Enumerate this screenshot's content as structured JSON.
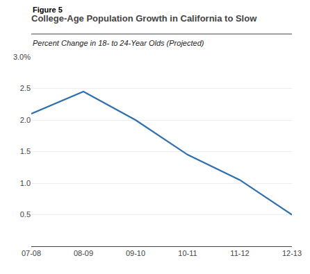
{
  "chart_data": {
    "type": "line",
    "title": "College-Age Population Growth in California to Slow",
    "subtitle": "Percent Change in 18- to 24-Year Olds (Projected)",
    "annotations": [
      "Figure 5"
    ],
    "categories": [
      "07-08",
      "08-09",
      "09-10",
      "10-11",
      "11-12",
      "12-13"
    ],
    "values": [
      2.1,
      2.45,
      2.0,
      1.45,
      1.05,
      0.5
    ],
    "color": "#2e6fad",
    "ylim": [
      0,
      3.0
    ],
    "yticks": [
      0.5,
      {
        "value": 1.0,
        "label": "1.0"
      },
      1.5,
      {
        "value": 2.0,
        "label": "2.0"
      },
      2.5,
      {
        "value": 3.0,
        "label": "3.0%"
      }
    ],
    "grid": true
  }
}
